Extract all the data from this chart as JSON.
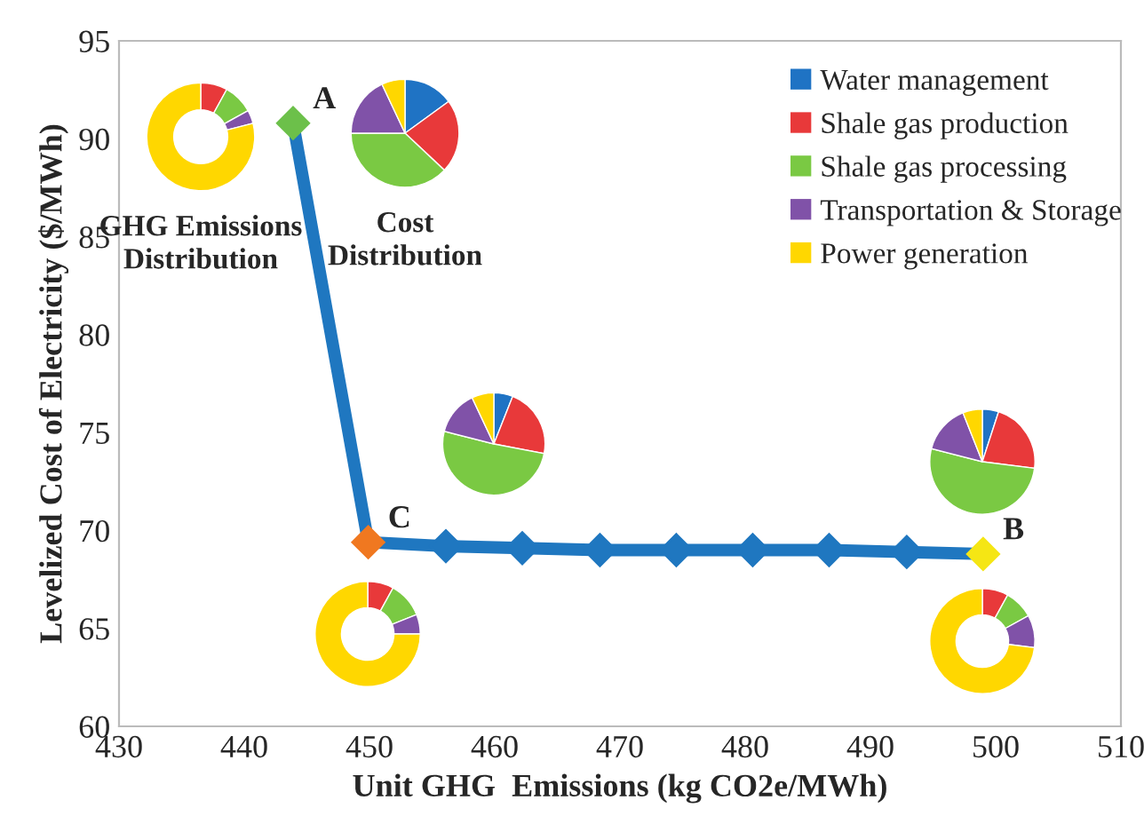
{
  "chart_data": [
    {
      "type": "line",
      "xlabel": "Unit GHG  Emissions (kg CO2e/MWh)",
      "ylabel": "Levelized Cost of Electricity ($/MWh)",
      "x": [
        443.9,
        449.9,
        456.1,
        462.2,
        468.4,
        474.5,
        480.6,
        486.7,
        492.9,
        499.0
      ],
      "series": [
        {
          "color": "#1f77c0",
          "values": [
            90.8,
            69.4,
            69.2,
            69.1,
            69.0,
            69.0,
            69.0,
            69.0,
            68.9,
            68.8
          ],
          "colors": [
            "#6cc04a",
            "#f07820",
            "#1f77c0",
            "#1f77c0",
            "#1f77c0",
            "#1f77c0",
            "#1f77c0",
            "#1f77c0",
            "#1f77c0",
            "#f5e614"
          ]
        }
      ],
      "marker": "diamond",
      "xlim": [
        430,
        510
      ],
      "ylim": [
        60,
        95
      ],
      "xticks": [
        430,
        440,
        450,
        460,
        470,
        480,
        490,
        500,
        510
      ],
      "yticks": [
        60,
        65,
        70,
        75,
        80,
        85,
        90,
        95
      ],
      "grid": false,
      "annotations": [
        {
          "text": "A",
          "x": 443.9,
          "y": 90.8
        },
        {
          "text": "C",
          "x": 449.9,
          "y": 69.4
        },
        {
          "text": "B",
          "x": 499.0,
          "y": 68.8
        }
      ]
    },
    {
      "type": "donut",
      "title": "GHG Emissions Distribution",
      "categories": [
        "Water management",
        "Shale gas production",
        "Shale gas processing",
        "Transportation & Storage",
        "Power generation"
      ],
      "values": [
        0,
        8,
        9,
        4,
        79
      ],
      "colors": [
        "#1f73c4",
        "#e8393a",
        "#7ac943",
        "#8052a8",
        "#ffd700"
      ],
      "legend": "right"
    },
    {
      "type": "pie",
      "title": "Cost Distribution",
      "categories": [
        null,
        null,
        null,
        null,
        null
      ],
      "values": [
        15,
        22,
        38,
        18,
        7
      ],
      "colors": [
        "#1f73c4",
        "#e8393a",
        "#7ac943",
        "#8052a8",
        "#ffd700"
      ]
    },
    {
      "type": "pie",
      "categories": [
        null,
        null,
        null,
        null,
        null
      ],
      "values": [
        6,
        22,
        51,
        14,
        7
      ],
      "colors": [
        "#1f73c4",
        "#e8393a",
        "#7ac943",
        "#8052a8",
        "#ffd700"
      ]
    },
    {
      "type": "donut",
      "categories": [
        null,
        null,
        null,
        null,
        null
      ],
      "values": [
        0,
        8,
        11,
        6,
        75
      ],
      "colors": [
        "#1f73c4",
        "#e8393a",
        "#7ac943",
        "#8052a8",
        "#ffd700"
      ]
    },
    {
      "type": "pie",
      "categories": [
        null,
        null,
        null,
        null,
        null
      ],
      "values": [
        5,
        22,
        52,
        15,
        6
      ],
      "colors": [
        "#1f73c4",
        "#e8393a",
        "#7ac943",
        "#8052a8",
        "#ffd700"
      ]
    },
    {
      "type": "donut",
      "categories": [
        null,
        null,
        null,
        null,
        null
      ],
      "values": [
        0,
        8,
        9,
        10,
        73
      ],
      "colors": [
        "#1f73c4",
        "#e8393a",
        "#7ac943",
        "#8052a8",
        "#ffd700"
      ]
    }
  ]
}
